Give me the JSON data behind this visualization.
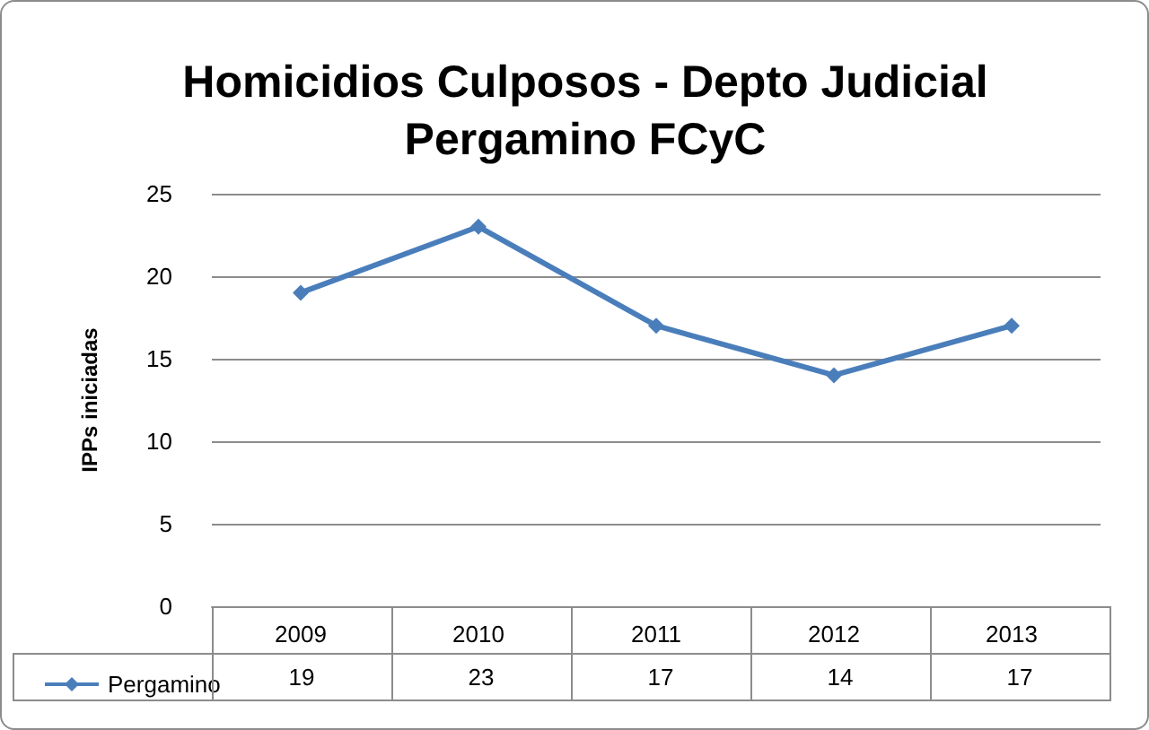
{
  "chart_data": {
    "type": "line",
    "title": "Homicidios Culposos - Depto Judicial\nPergamino FCyC",
    "ylabel": "IPPs iniciadas",
    "categories": [
      "2009",
      "2010",
      "2011",
      "2012",
      "2013"
    ],
    "series": [
      {
        "name": "Pergamino",
        "color": "#4a7ebb",
        "values": [
          19,
          23,
          17,
          14,
          17
        ]
      }
    ],
    "ylim": [
      0,
      25
    ],
    "yticks": [
      0,
      5,
      10,
      15,
      20,
      25
    ],
    "grid": "y",
    "legend": "bottom left",
    "marker": "diamond",
    "data_labels": true
  }
}
